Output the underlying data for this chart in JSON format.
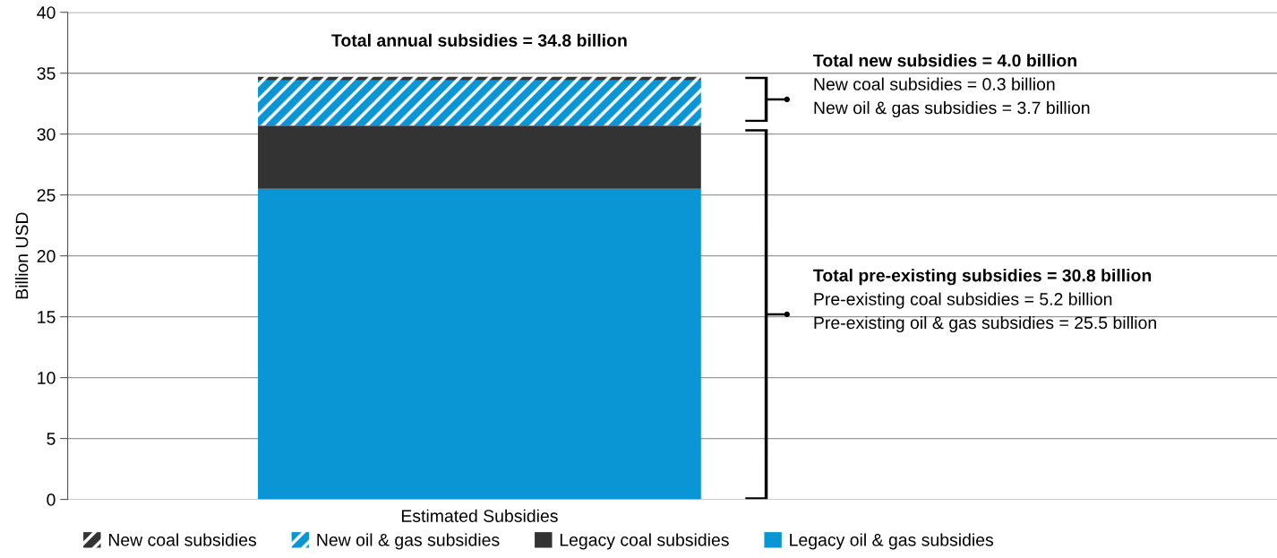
{
  "chart_data": {
    "type": "bar",
    "stacked": true,
    "ylabel": "Billion USD",
    "categories": [
      "Estimated Subsidies"
    ],
    "series": [
      {
        "name": "Legacy oil & gas subsidies",
        "color": "#0a95d5",
        "values": [
          25.5
        ]
      },
      {
        "name": "Legacy coal subsidies",
        "color": "#333333",
        "values": [
          5.2
        ]
      },
      {
        "name": "New oil & gas subsidies",
        "color": "#0a95d5",
        "values": [
          3.7
        ]
      },
      {
        "name": "New coal subsidies",
        "color": "#333333",
        "values": [
          0.3
        ]
      }
    ],
    "ylim": [
      0,
      40
    ],
    "yticks": [
      0,
      5,
      10,
      15,
      20,
      25,
      30,
      35,
      40
    ],
    "grid": "y",
    "legend": "bottom",
    "annotations": [
      "Total annual subsidies = 34.8 billion",
      "Total new subsidies = 4.0 billion",
      "New coal subsidies = 0.3 billion",
      "New oil & gas subsidies = 3.7 billion",
      "Total pre-existing subsidies = 30.8 billion",
      "Pre-existing coal subsidies = 5.2 billion",
      "Pre-existing oil & gas subsidies = 25.5 billion"
    ]
  }
}
